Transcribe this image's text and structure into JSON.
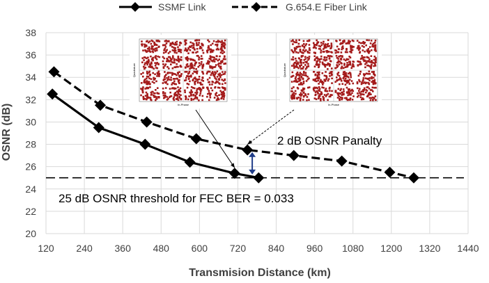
{
  "chart_data": {
    "type": "line",
    "xlabel": "Transmision Distance (km)",
    "ylabel": "OSNR (dB)",
    "xlim": [
      120,
      1440
    ],
    "ylim": [
      20,
      38
    ],
    "xticks": [
      120,
      240,
      360,
      480,
      600,
      720,
      840,
      960,
      1080,
      1200,
      1320,
      1440
    ],
    "yticks": [
      20,
      22,
      24,
      26,
      28,
      30,
      32,
      34,
      36,
      38
    ],
    "grid": "both",
    "legend_position": "top",
    "series": [
      {
        "name": "SSMF Link",
        "style": "solid",
        "color": "#000000",
        "marker": "diamond",
        "x": [
          140,
          285,
          430,
          570,
          710,
          785
        ],
        "y": [
          32.5,
          29.5,
          28.0,
          26.4,
          25.4,
          25.0
        ]
      },
      {
        "name": "G.654.E Fiber Link",
        "style": "dashed",
        "color": "#000000",
        "marker": "diamond",
        "x": [
          145,
          290,
          435,
          590,
          750,
          895,
          1045,
          1195,
          1270
        ],
        "y": [
          34.5,
          31.5,
          30.0,
          28.5,
          27.5,
          27.0,
          26.5,
          25.5,
          25.0
        ]
      }
    ],
    "threshold": {
      "y": 25.0,
      "style": "dashed"
    },
    "annotations": {
      "threshold_text": "25 dB OSNR threshold for FEC BER = 0.033",
      "penalty_text": "2 dB OSNR Panalty",
      "penalty_arrow": {
        "x": 765,
        "y_from": 25.3,
        "y_to": 27.3,
        "color": "#1f3c88"
      }
    },
    "insets": [
      {
        "name": "ssmf-constellation",
        "x_label": "In-Phase",
        "y_label": "Quadrature",
        "points_to": {
          "x": 710,
          "y": 25.4
        }
      },
      {
        "name": "g654e-constellation",
        "x_label": "In-Phase",
        "y_label": "Quadrature",
        "points_to": {
          "x": 750,
          "y": 27.5
        }
      }
    ]
  },
  "colors": {
    "axis": "#d9d9d9",
    "grid": "#d9d9d9",
    "constellation": "#a41b1b",
    "arrow": "#1f3c88"
  }
}
